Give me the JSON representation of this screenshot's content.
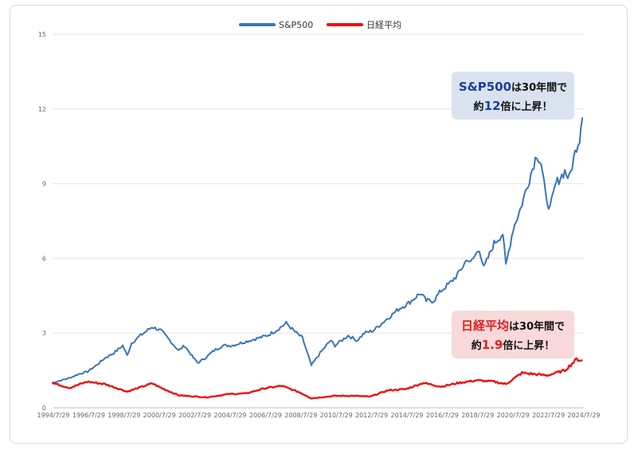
{
  "chart_data": {
    "type": "line",
    "title": "",
    "xlabel": "",
    "ylabel": "",
    "ylim": [
      0,
      15
    ],
    "yticks": [
      0,
      3,
      6,
      9,
      12,
      15
    ],
    "xlim": [
      "1994/7/29",
      "2024/7/29"
    ],
    "xtick_labels": [
      "1994/7/29",
      "1996/7/29",
      "1998/7/29",
      "2000/7/29",
      "2002/7/29",
      "2004/7/29",
      "2006/7/29",
      "2008/7/29",
      "2010/7/29",
      "2012/7/29",
      "2014/7/29",
      "2016/7/29",
      "2018/7/29",
      "2020/7/29",
      "2022/7/29",
      "2024/7/29"
    ],
    "grid": "horizontal",
    "legend": "top-center",
    "series": [
      {
        "name": "S&P500",
        "color": "#3a76b8",
        "x": [
          "1994/7",
          "1995/7",
          "1996/1",
          "1996/7",
          "1997/1",
          "1997/7",
          "1998/1",
          "1998/7",
          "1998/10",
          "1999/1",
          "1999/7",
          "2000/3",
          "2000/9",
          "2001/3",
          "2001/9",
          "2002/1",
          "2002/7",
          "2002/10",
          "2003/3",
          "2003/9",
          "2004/3",
          "2004/9",
          "2005/3",
          "2005/9",
          "2006/3",
          "2006/9",
          "2007/3",
          "2007/10",
          "2008/3",
          "2008/9",
          "2009/3",
          "2009/9",
          "2010/4",
          "2010/7",
          "2011/4",
          "2011/10",
          "2012/3",
          "2012/9",
          "2013/3",
          "2013/9",
          "2014/3",
          "2014/9",
          "2015/5",
          "2015/9",
          "2016/2",
          "2016/7",
          "2017/1",
          "2017/7",
          "2018/1",
          "2018/3",
          "2018/9",
          "2018/12",
          "2019/7",
          "2020/1",
          "2020/3",
          "2020/8",
          "2021/1",
          "2021/6",
          "2021/12",
          "2022/3",
          "2022/6",
          "2022/9",
          "2023/1",
          "2023/7",
          "2023/10",
          "2024/3",
          "2024/5",
          "2024/7"
        ],
        "y": [
          1.0,
          1.2,
          1.35,
          1.45,
          1.7,
          2.0,
          2.2,
          2.5,
          2.1,
          2.6,
          2.9,
          3.25,
          3.1,
          2.7,
          2.3,
          2.5,
          2.0,
          1.8,
          2.0,
          2.3,
          2.5,
          2.5,
          2.6,
          2.7,
          2.8,
          2.9,
          3.1,
          3.4,
          3.1,
          2.8,
          1.7,
          2.2,
          2.7,
          2.5,
          2.9,
          2.7,
          3.0,
          3.1,
          3.4,
          3.7,
          4.0,
          4.2,
          4.6,
          4.3,
          4.3,
          4.7,
          5.0,
          5.4,
          6.0,
          5.8,
          6.4,
          5.6,
          6.6,
          7.0,
          5.7,
          7.2,
          8.0,
          9.0,
          10.2,
          9.8,
          8.5,
          8.0,
          9.0,
          9.5,
          9.2,
          10.5,
          10.8,
          11.9
        ]
      },
      {
        "name": "日経平均",
        "color": "#ee0f0f",
        "x": [
          "1994/7",
          "1995/7",
          "1996/7",
          "1997/7",
          "1998/10",
          "2000/3",
          "2000/9",
          "2001/9",
          "2003/4",
          "2004/7",
          "2005/7",
          "2006/7",
          "2007/7",
          "2008/7",
          "2009/3",
          "2010/7",
          "2011/7",
          "2012/7",
          "2013/7",
          "2014/7",
          "2015/7",
          "2016/7",
          "2017/7",
          "2018/7",
          "2019/7",
          "2020/3",
          "2021/2",
          "2022/7",
          "2023/7",
          "2024/3",
          "2024/7"
        ],
        "y": [
          1.0,
          0.8,
          1.05,
          0.95,
          0.65,
          0.98,
          0.8,
          0.5,
          0.42,
          0.55,
          0.58,
          0.78,
          0.88,
          0.62,
          0.38,
          0.48,
          0.48,
          0.45,
          0.7,
          0.75,
          1.0,
          0.85,
          1.0,
          1.1,
          1.05,
          0.95,
          1.4,
          1.3,
          1.5,
          1.95,
          1.9
        ]
      }
    ],
    "annotations": [
      {
        "series_label": "S&P500",
        "line1_suffix": "は30年間で",
        "line2_prefix": "約",
        "highlight": "12",
        "line2_suffix": "倍に上昇！"
      },
      {
        "series_label": "日経平均",
        "line1_suffix": "は30年間で",
        "line2_prefix": "約",
        "highlight": "1.9",
        "line2_suffix": "倍に上昇！"
      }
    ]
  }
}
